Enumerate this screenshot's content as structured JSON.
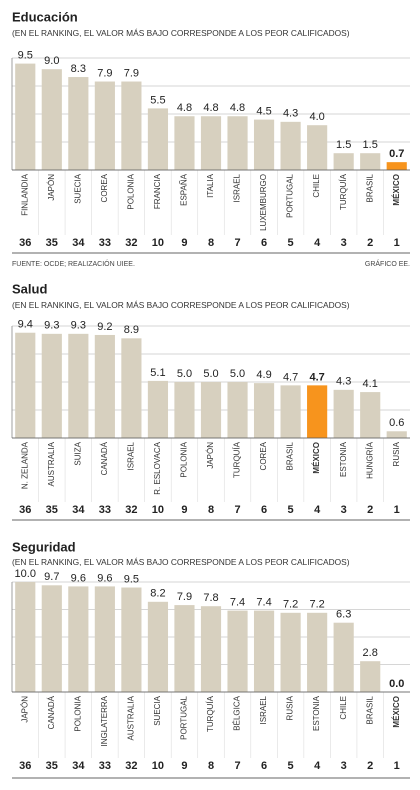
{
  "chart_data": [
    {
      "type": "bar",
      "title": "Educación",
      "subtitle": "(EN EL RANKING, EL VALOR MÁS BAJO CORRESPONDE A LOS PEOR CALIFICADOS)",
      "categories": [
        "FINLANDIA",
        "JAPÓN",
        "SUECIA",
        "COREA",
        "POLONIA",
        "FRANCIA",
        "ESPAÑA",
        "ITALIA",
        "ISRAEL",
        "LUXEMBURGO",
        "PORTUGAL",
        "CHILE",
        "TURQUÍA",
        "BRASIL",
        "MÉXICO"
      ],
      "values": [
        9.5,
        9.0,
        8.3,
        7.9,
        7.9,
        5.5,
        4.8,
        4.8,
        4.8,
        4.5,
        4.3,
        4.0,
        1.5,
        1.5,
        0.7
      ],
      "value_labels": [
        "9.5",
        "9.0",
        "8.3",
        "7.9",
        "7.9",
        "5.5",
        "4.8",
        "4.8",
        "4.8",
        "4.5",
        "4.3",
        "4.0",
        "1.5",
        "1.5",
        "0.7"
      ],
      "ranks": [
        36,
        35,
        34,
        33,
        32,
        10,
        9,
        8,
        7,
        6,
        5,
        4,
        3,
        2,
        1
      ],
      "color": "#d7d0bf",
      "highlight_color": "#f7941d",
      "highlight_index": 14,
      "ylim": [
        0,
        10
      ],
      "yticks": [
        0,
        2.5,
        5,
        7.5,
        10
      ],
      "grid": true,
      "source": "FUENTE: OCDE; REALIZACIÓN UIEE.",
      "credit": "GRÁFICO EE."
    },
    {
      "type": "bar",
      "title": "Salud",
      "subtitle": "(EN EL RANKING, EL VALOR MÁS BAJO CORRESPONDE A LOS PEOR CALIFICADOS)",
      "categories": [
        "N. ZELANDA",
        "AUSTRALIA",
        "SUIZA",
        "CANADÁ",
        "ISRAEL",
        "R. ESLOVACA",
        "POLONIA",
        "JAPÓN",
        "TURQUÍA",
        "COREA",
        "BRASIL",
        "MÉXICO",
        "ESTONIA",
        "HUNGRÍA",
        "RUSIA"
      ],
      "values": [
        9.4,
        9.3,
        9.3,
        9.2,
        8.9,
        5.1,
        5.0,
        5.0,
        5.0,
        4.9,
        4.7,
        4.7,
        4.3,
        4.1,
        0.6
      ],
      "value_labels": [
        "9.4",
        "9.3",
        "9.3",
        "9.2",
        "8.9",
        "5.1",
        "5.0",
        "5.0",
        "5.0",
        "4.9",
        "4.7",
        "4.7",
        "4.3",
        "4.1",
        "0.6"
      ],
      "ranks": [
        36,
        35,
        34,
        33,
        32,
        10,
        9,
        8,
        7,
        6,
        5,
        4,
        3,
        2,
        1
      ],
      "color": "#d7d0bf",
      "highlight_color": "#f7941d",
      "highlight_index": 11,
      "ylim": [
        0,
        10
      ],
      "yticks": [
        0,
        2.5,
        5,
        7.5,
        10
      ],
      "grid": true
    },
    {
      "type": "bar",
      "title": "Seguridad",
      "subtitle": "(EN EL RANKING, EL VALOR MÁS BAJO CORRESPONDE A LOS PEOR CALIFICADOS)",
      "categories": [
        "JAPÓN",
        "CANADÁ",
        "POLONIA",
        "INGLATERRA",
        "AUSTRALIA",
        "SUECIA",
        "PORTUGAL",
        "TURQUÍA",
        "BÉLGICA",
        "ISRAEL",
        "RUSIA",
        "ESTONIA",
        "CHILE",
        "BRASIL",
        "MÉXICO"
      ],
      "values": [
        10.0,
        9.7,
        9.6,
        9.6,
        9.5,
        8.2,
        7.9,
        7.8,
        7.4,
        7.4,
        7.2,
        7.2,
        6.3,
        2.8,
        0.0
      ],
      "value_labels": [
        "10.0",
        "9.7",
        "9.6",
        "9.6",
        "9.5",
        "8.2",
        "7.9",
        "7.8",
        "7.4",
        "7.4",
        "7.2",
        "7.2",
        "6.3",
        "2.8",
        "0.0"
      ],
      "ranks": [
        36,
        35,
        34,
        33,
        32,
        10,
        9,
        8,
        7,
        6,
        5,
        4,
        3,
        2,
        1
      ],
      "color": "#d7d0bf",
      "highlight_color": "#f7941d",
      "highlight_index": 14,
      "ylim": [
        0,
        10
      ],
      "yticks": [
        0,
        2.5,
        5,
        7.5,
        10
      ],
      "grid": true
    }
  ]
}
